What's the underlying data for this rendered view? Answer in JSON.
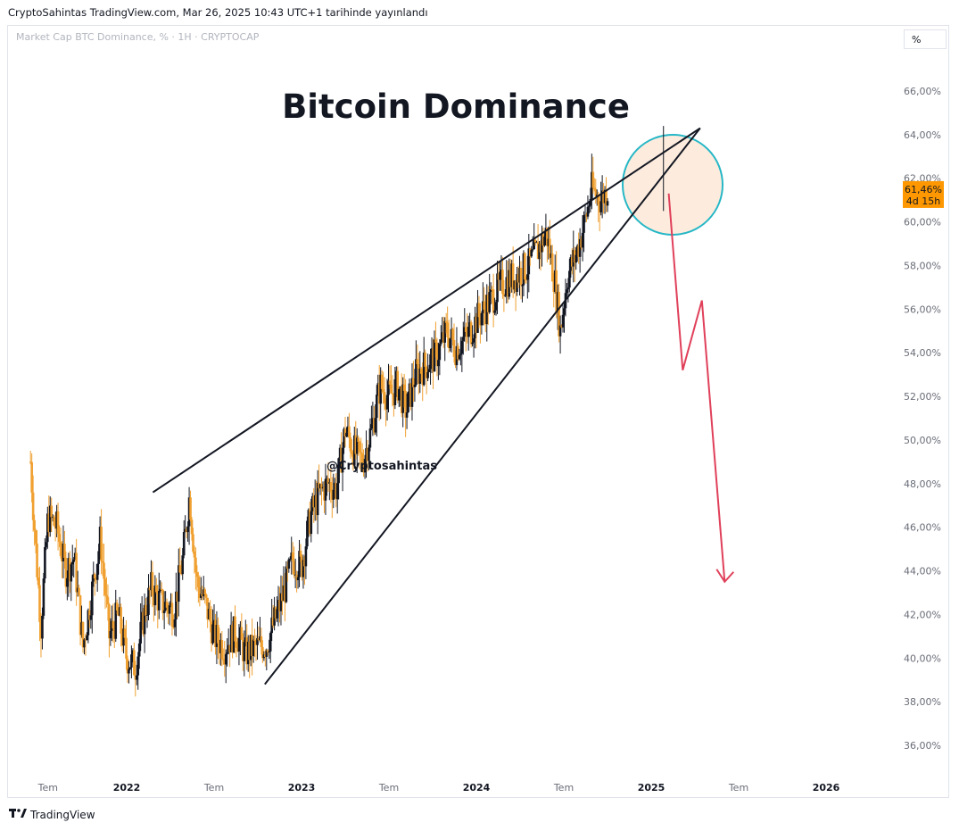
{
  "header": {
    "published": "CryptoSahintas TradingView.com, Mar 26, 2025 10:43 UTC+1 tarihinde yayınlandı",
    "symbol": "Market Cap BTC Dominance, % · 1H · CRYPTOCAP",
    "scale_button": "%"
  },
  "footer": {
    "brand": "TradingView"
  },
  "chart_data": {
    "type": "candlestick",
    "title": "Bitcoin Dominance",
    "watermark": "@Cryptosahintas",
    "y_unit": "%",
    "ylim": [
      34.8,
      67.4
    ],
    "y_ticks": [
      {
        "value": 66,
        "label": "66,00%"
      },
      {
        "value": 64,
        "label": "64,00%"
      },
      {
        "value": 62,
        "label": "62,00%"
      },
      {
        "value": 60,
        "label": "60,00%"
      },
      {
        "value": 58,
        "label": "58,00%"
      },
      {
        "value": 56,
        "label": "56,00%"
      },
      {
        "value": 54,
        "label": "54,00%"
      },
      {
        "value": 52,
        "label": "52,00%"
      },
      {
        "value": 50,
        "label": "50,00%"
      },
      {
        "value": 48,
        "label": "48,00%"
      },
      {
        "value": 46,
        "label": "46,00%"
      },
      {
        "value": 44,
        "label": "44,00%"
      },
      {
        "value": 42,
        "label": "42,00%"
      },
      {
        "value": 40,
        "label": "40,00%"
      },
      {
        "value": 38,
        "label": "38,00%"
      },
      {
        "value": 36,
        "label": "36,00%"
      }
    ],
    "x_ticks": [
      {
        "t": 2021.55,
        "label": "Tem"
      },
      {
        "t": 2022.0,
        "label": "2022"
      },
      {
        "t": 2022.5,
        "label": "Tem"
      },
      {
        "t": 2023.0,
        "label": "2023"
      },
      {
        "t": 2023.5,
        "label": "Tem"
      },
      {
        "t": 2024.0,
        "label": "2024"
      },
      {
        "t": 2024.5,
        "label": "Tem"
      },
      {
        "t": 2025.0,
        "label": "2025"
      },
      {
        "t": 2025.5,
        "label": "Tem"
      },
      {
        "t": 2026.0,
        "label": "2026"
      }
    ],
    "last_price": {
      "value": 61.46,
      "label": "61,46%",
      "countdown": "4d 15h",
      "color": "#ff9800"
    },
    "colors": {
      "up": "#131722",
      "down": "#f0a030",
      "trendline": "#131722",
      "forecast": "#e0405a",
      "circle_stroke": "#26b7c6",
      "circle_fill": "#fde9d8"
    },
    "annotations": {
      "wedge_upper": [
        {
          "t": 2022.15,
          "v": 47.6
        },
        {
          "t": 2025.28,
          "v": 64.3
        }
      ],
      "wedge_lower": [
        {
          "t": 2022.79,
          "v": 38.8
        },
        {
          "t": 2025.28,
          "v": 64.3
        }
      ],
      "circle_center": {
        "t": 2025.0,
        "v": 61.5
      },
      "forecast_path": [
        {
          "t": 2025.1,
          "v": 61.3
        },
        {
          "t": 2025.18,
          "v": 53.2
        },
        {
          "t": 2025.29,
          "v": 56.4
        },
        {
          "t": 2025.42,
          "v": 43.5
        }
      ]
    },
    "series_anchors": [
      [
        2021.45,
        49.0
      ],
      [
        2021.48,
        45.0
      ],
      [
        2021.51,
        41.5
      ],
      [
        2021.55,
        46.5
      ],
      [
        2021.6,
        46.0
      ],
      [
        2021.65,
        44.0
      ],
      [
        2021.7,
        44.6
      ],
      [
        2021.75,
        40.5
      ],
      [
        2021.8,
        43.0
      ],
      [
        2021.85,
        45.5
      ],
      [
        2021.9,
        41.0
      ],
      [
        2021.95,
        42.0
      ],
      [
        2022.0,
        40.0
      ],
      [
        2022.05,
        39.6
      ],
      [
        2022.1,
        42.0
      ],
      [
        2022.14,
        43.2
      ],
      [
        2022.2,
        42.5
      ],
      [
        2022.27,
        42.2
      ],
      [
        2022.32,
        44.5
      ],
      [
        2022.36,
        47.5
      ],
      [
        2022.4,
        43.5
      ],
      [
        2022.45,
        42.5
      ],
      [
        2022.5,
        41.0
      ],
      [
        2022.56,
        40.5
      ],
      [
        2022.62,
        41.2
      ],
      [
        2022.68,
        40.2
      ],
      [
        2022.74,
        40.5
      ],
      [
        2022.8,
        40.6
      ],
      [
        2022.88,
        42.5
      ],
      [
        2022.95,
        44.5
      ],
      [
        2023.0,
        44.2
      ],
      [
        2023.05,
        46.5
      ],
      [
        2023.1,
        47.5
      ],
      [
        2023.15,
        48.0
      ],
      [
        2023.2,
        47.8
      ],
      [
        2023.25,
        50.5
      ],
      [
        2023.3,
        49.5
      ],
      [
        2023.35,
        49.0
      ],
      [
        2023.4,
        50.5
      ],
      [
        2023.45,
        52.5
      ],
      [
        2023.5,
        52.0
      ],
      [
        2023.55,
        52.5
      ],
      [
        2023.6,
        51.3
      ],
      [
        2023.65,
        53.0
      ],
      [
        2023.72,
        53.5
      ],
      [
        2023.78,
        54.0
      ],
      [
        2023.83,
        55.0
      ],
      [
        2023.88,
        54.2
      ],
      [
        2023.95,
        54.8
      ],
      [
        2024.0,
        55.5
      ],
      [
        2024.08,
        56.4
      ],
      [
        2024.15,
        57.2
      ],
      [
        2024.22,
        57.5
      ],
      [
        2024.3,
        58.0
      ],
      [
        2024.35,
        58.7
      ],
      [
        2024.4,
        59.5
      ],
      [
        2024.45,
        57.2
      ],
      [
        2024.48,
        55.0
      ],
      [
        2024.52,
        57.5
      ],
      [
        2024.57,
        58.5
      ],
      [
        2024.62,
        60.0
      ],
      [
        2024.66,
        61.5
      ],
      [
        2024.71,
        61.0
      ],
      [
        2024.75,
        61.5
      ]
    ]
  }
}
